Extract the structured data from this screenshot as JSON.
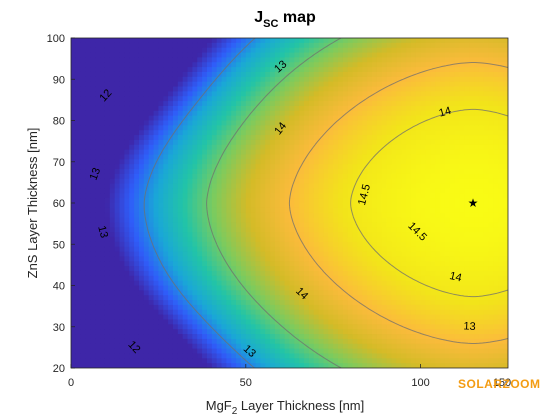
{
  "chart_data": {
    "type": "heatmap",
    "title_main": "J",
    "title_sub": "SC",
    "title_rest": " map",
    "xlabel_main": "MgF",
    "xlabel_sub": "2",
    "xlabel_rest": " Layer Thickness [nm]",
    "ylabel": "ZnS Layer Thickness [nm]",
    "xlim": [
      0,
      125
    ],
    "ylim": [
      20,
      100
    ],
    "x_ticks": [
      0,
      50,
      100,
      150
    ],
    "x_tick_labels": [
      "0",
      "50",
      "100",
      "150"
    ],
    "y_ticks": [
      20,
      30,
      40,
      50,
      60,
      70,
      80,
      90,
      100
    ],
    "y_tick_labels": [
      "20",
      "30",
      "40",
      "50",
      "60",
      "70",
      "80",
      "90",
      "100"
    ],
    "colormap": [
      "#3e26a8",
      "#2f5df9",
      "#1aa7d7",
      "#22c4a7",
      "#7ccb5e",
      "#d4bb27",
      "#fbbb3c",
      "#f2e41a",
      "#f9fb15"
    ],
    "color_range": [
      11.3,
      14.9
    ],
    "optimum_marker": {
      "x": 115,
      "y": 60,
      "symbol": "★"
    },
    "contours": [
      {
        "label": "12",
        "label_points": [
          {
            "x": 10,
            "y": 86
          },
          {
            "x": 18,
            "y": 25
          }
        ]
      },
      {
        "label": "13",
        "label_points": [
          {
            "x": 60,
            "y": 93
          },
          {
            "x": 7,
            "y": 67
          },
          {
            "x": 9,
            "y": 53
          },
          {
            "x": 51,
            "y": 24
          },
          {
            "x": 114,
            "y": 30
          }
        ]
      },
      {
        "label": "14",
        "label_points": [
          {
            "x": 60,
            "y": 78
          },
          {
            "x": 107,
            "y": 82
          },
          {
            "x": 66,
            "y": 38
          },
          {
            "x": 110,
            "y": 42
          }
        ]
      },
      {
        "label": "14.5",
        "label_points": [
          {
            "x": 84,
            "y": 62
          },
          {
            "x": 99,
            "y": 53
          }
        ]
      }
    ]
  },
  "watermark": {
    "text": "SOLARZOOM",
    "color": "#f39c12"
  }
}
